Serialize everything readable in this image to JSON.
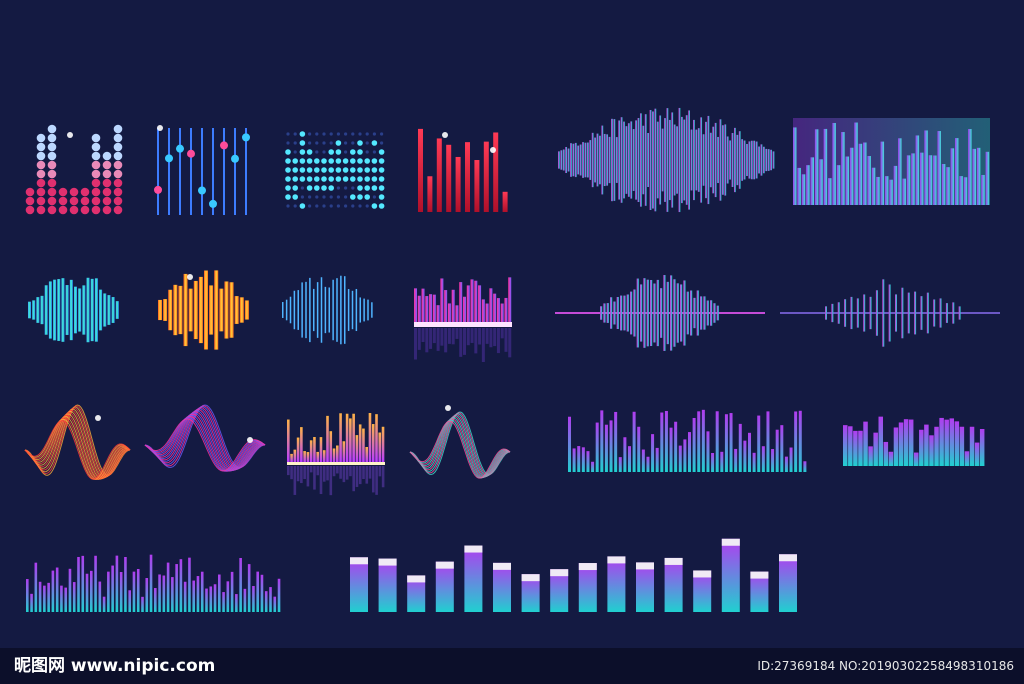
{
  "watermark": {
    "site": "昵图网 www.nipic.com",
    "id": "ID:27369184 NO:20190302258498310186"
  }
}
